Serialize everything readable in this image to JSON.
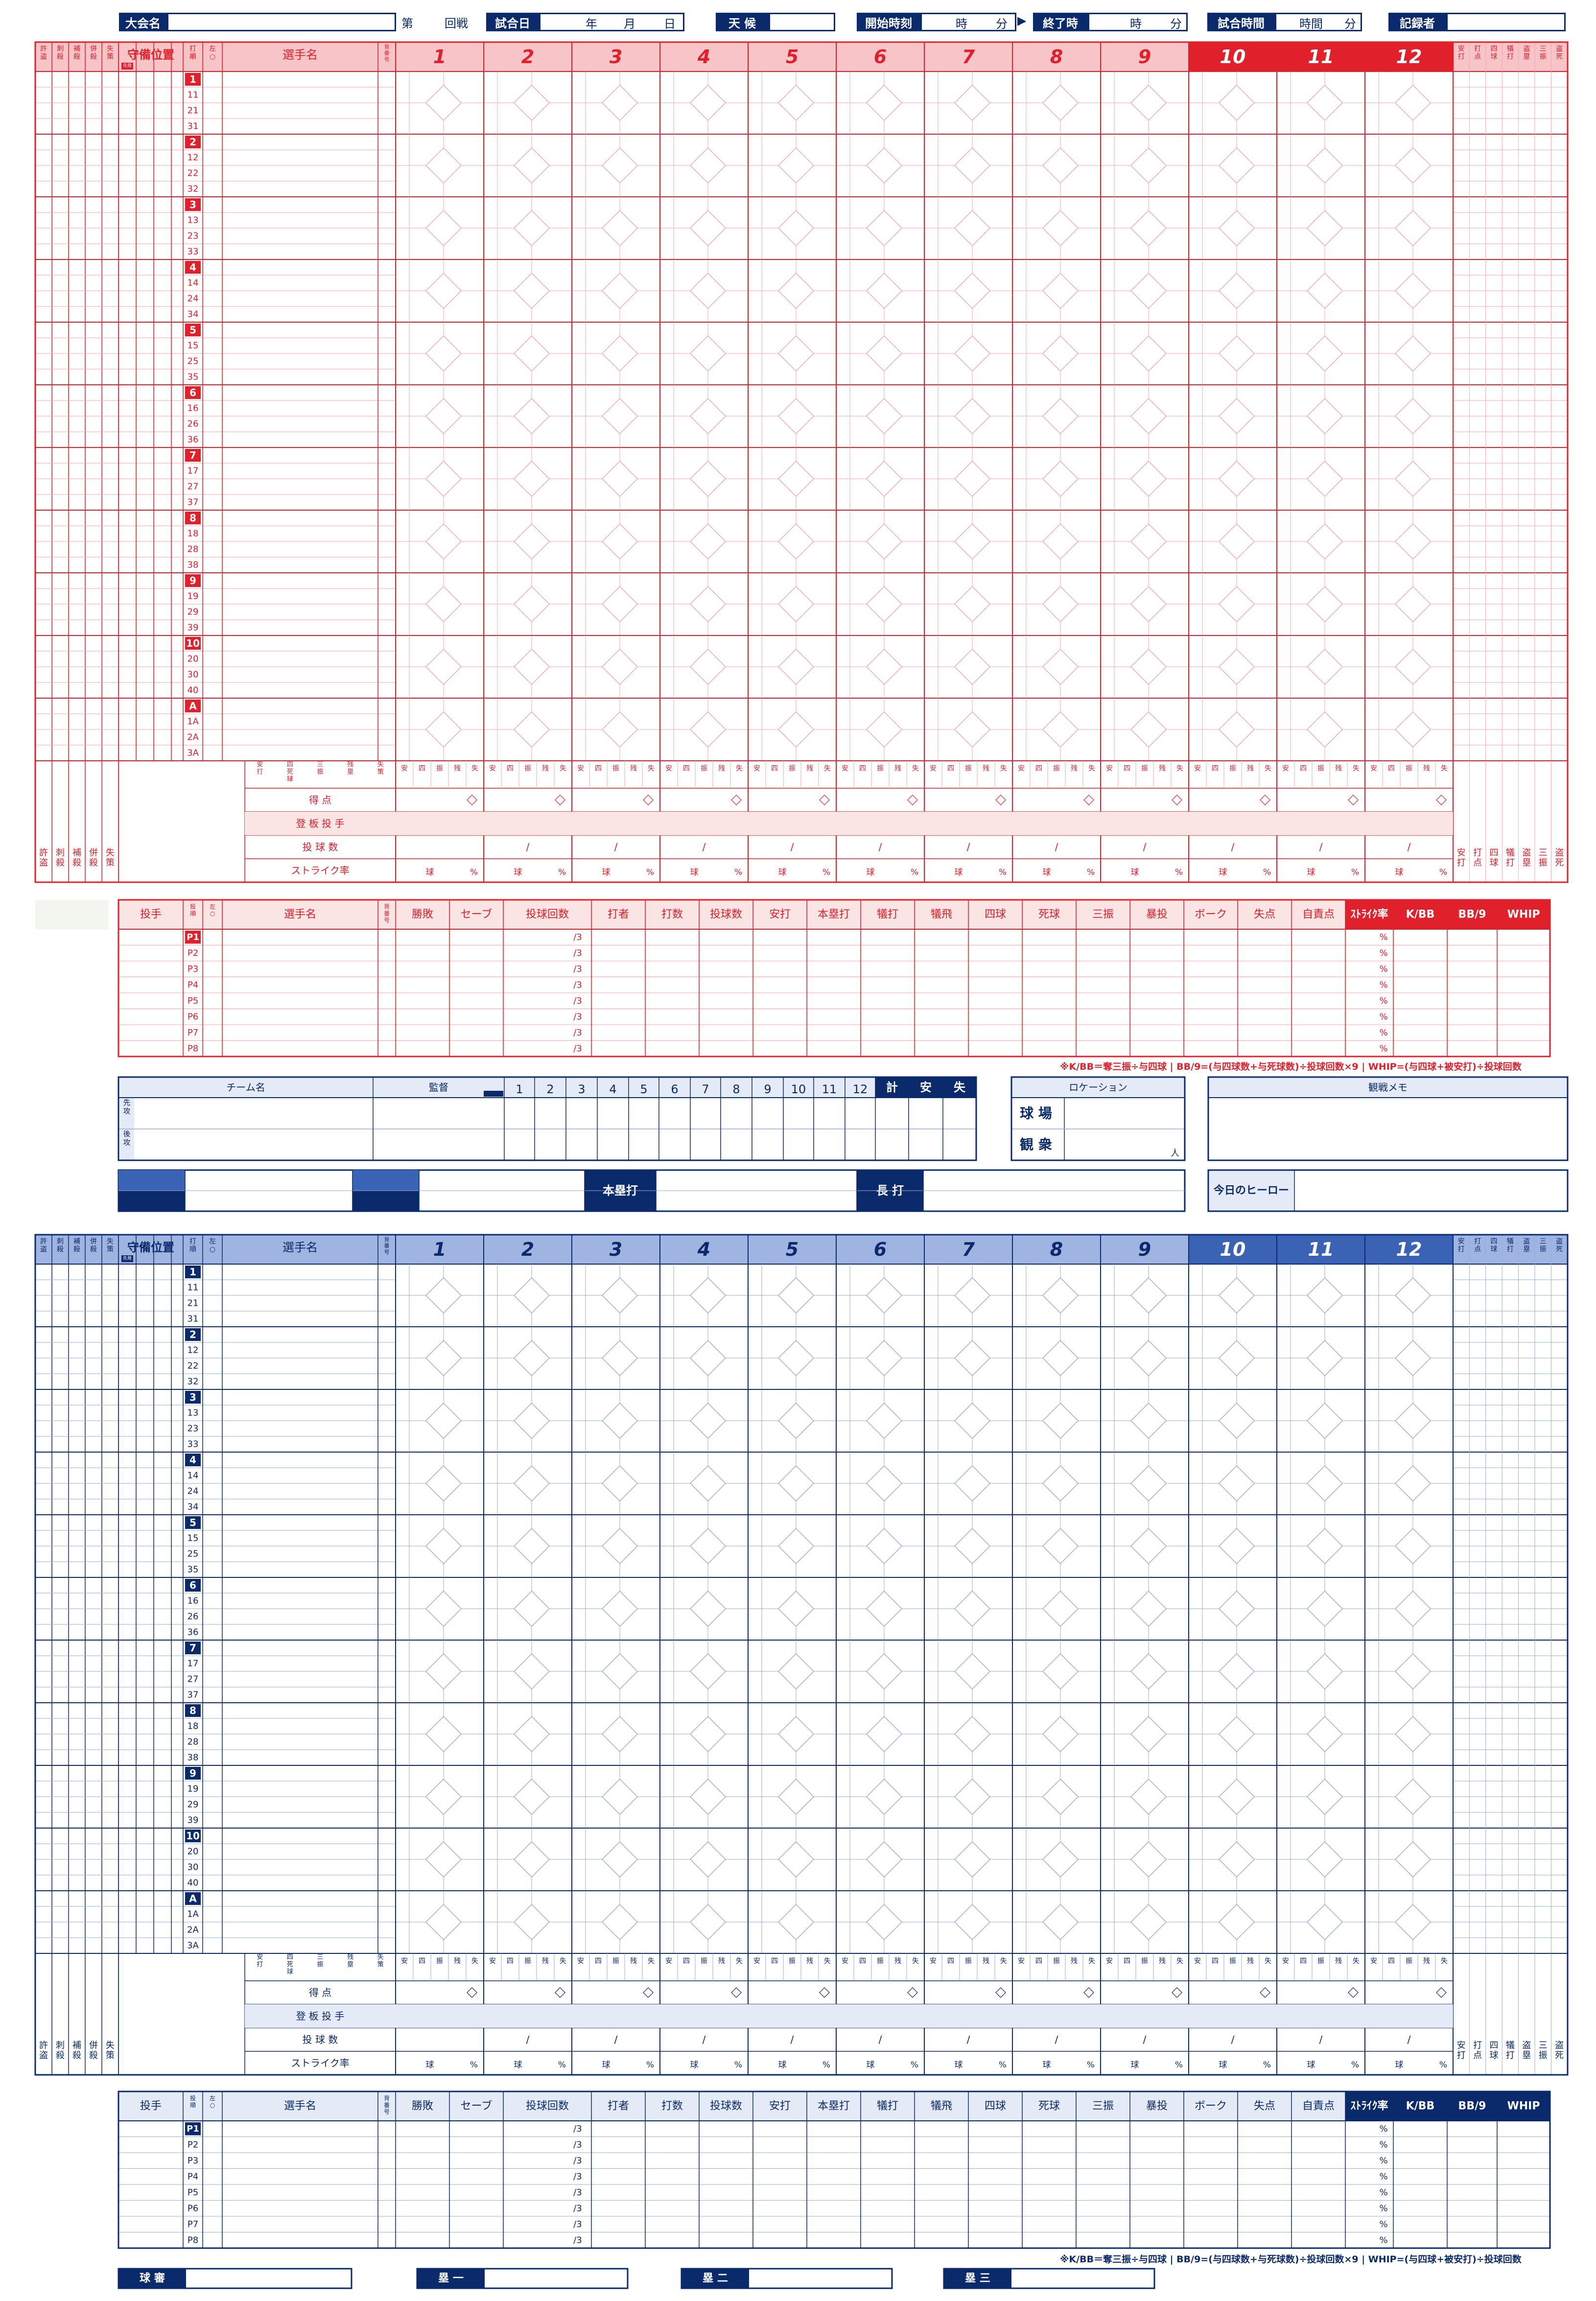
{
  "header": {
    "tournament_label": "大会名",
    "dai": "第",
    "kaisen": "回戦",
    "game_date_label": "試合日",
    "date_units": [
      "年",
      "月",
      "日"
    ],
    "weather_label": "天 候",
    "start_label": "開始時刻",
    "time_units": [
      "時",
      "分"
    ],
    "arrow": "▶",
    "end_label": "終了時",
    "duration_label": "試合時間",
    "duration_units": [
      "時間",
      "分"
    ],
    "recorder_label": "記録者"
  },
  "scoresheet": {
    "left_stats": [
      "許盗",
      "刺殺",
      "補殺",
      "併殺",
      "失策"
    ],
    "defense_position": "守備位置",
    "starter_mark": "先発",
    "bat_order_label": "打順",
    "hand_label": "左○",
    "player_name": "選手名",
    "uniform_no": "背番号",
    "innings": [
      "1",
      "2",
      "3",
      "4",
      "5",
      "6",
      "7",
      "8",
      "9",
      "10",
      "11",
      "12"
    ],
    "right_stats": [
      "安打",
      "打点",
      "四球",
      "犠打",
      "盗塁",
      "三振",
      "盗死"
    ],
    "slots": [
      {
        "order": "1",
        "subs": [
          "11",
          "21",
          "31"
        ]
      },
      {
        "order": "2",
        "subs": [
          "12",
          "22",
          "32"
        ]
      },
      {
        "order": "3",
        "subs": [
          "13",
          "23",
          "33"
        ]
      },
      {
        "order": "4",
        "subs": [
          "14",
          "24",
          "34"
        ]
      },
      {
        "order": "5",
        "subs": [
          "15",
          "25",
          "35"
        ]
      },
      {
        "order": "6",
        "subs": [
          "16",
          "26",
          "36"
        ]
      },
      {
        "order": "7",
        "subs": [
          "17",
          "27",
          "37"
        ]
      },
      {
        "order": "8",
        "subs": [
          "18",
          "28",
          "38"
        ]
      },
      {
        "order": "9",
        "subs": [
          "19",
          "29",
          "39"
        ]
      },
      {
        "order": "10",
        "subs": [
          "20",
          "30",
          "40"
        ]
      },
      {
        "order": "A",
        "subs": [
          "1A",
          "2A",
          "3A"
        ]
      }
    ],
    "inning_sub_headers": [
      "安",
      "四",
      "振",
      "残",
      "失"
    ],
    "totals_headers": [
      "安打",
      "四死球",
      "三振",
      "残塁",
      "失策"
    ],
    "summary_rows": [
      "得 点",
      "登 板 投 手",
      "投 球 数",
      "ストライク率"
    ],
    "pitch_count_sep": "/",
    "strike_units": [
      "球",
      "%"
    ]
  },
  "pitching": {
    "headers": [
      "投手",
      "投順",
      "左○",
      "選手名",
      "背番号",
      "勝敗",
      "セーブ",
      "投球回数",
      "打者",
      "打数",
      "投球数",
      "安打",
      "本塁打",
      "犠打",
      "犠飛",
      "四球",
      "死球",
      "三振",
      "暴投",
      "ボーク",
      "失点",
      "自責点",
      "ｽﾄﾗｲｸ率",
      "K/BB",
      "BB/9",
      "WHIP"
    ],
    "rows": [
      "P1",
      "P2",
      "P3",
      "P4",
      "P5",
      "P6",
      "P7",
      "P8"
    ],
    "innings_suffix": "/3",
    "pct": "%",
    "footnote": "※K/BB＝奪三振÷与四球 | BB/9=(与四球数+与死球数)÷投球回数×9 | WHIP=(与四球+被安打)÷投球回数"
  },
  "linescore": {
    "team_header": "チーム名",
    "manager_header": "監督",
    "mark": "ｲﾆﾝｸﾞ",
    "innings": [
      "1",
      "2",
      "3",
      "4",
      "5",
      "6",
      "7",
      "8",
      "9",
      "10",
      "11",
      "12"
    ],
    "totals": [
      "計",
      "安",
      "失"
    ],
    "first": "先攻",
    "second": "後攻",
    "location_header": "ロケーション",
    "stadium": "球 場",
    "audience": "観 衆",
    "person": "人",
    "memo_header": "観戦メモ",
    "homerun": "本塁打",
    "long_hit": "長 打",
    "hero": "今日のヒーロー"
  },
  "umpires": [
    "球 審",
    "塁 一",
    "塁 二",
    "塁 三"
  ],
  "colors": {
    "red": "#e0202a",
    "red_light": "#fbe4e4",
    "red_head": "#f7c4c8",
    "navy": "#0a2a6b",
    "blue": "#3a63b5",
    "blue_light": "#e4eaf6",
    "blue_head": "#9fb4e0",
    "line_red": "#f1a9ae",
    "line_blue": "#9aaed6"
  }
}
